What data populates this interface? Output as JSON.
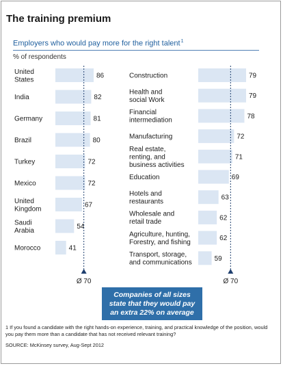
{
  "title": "The training premium",
  "subtitle": "Employers who would pay more for the right talent",
  "subtitle_footnote_marker": "1",
  "unit_label": "% of respondents",
  "callout": "Companies of all sizes\nstate that they would pay\nan extra 22% on average",
  "footnote": "1 If you found a candidate with the right hands-on experience, training, and practical knowledge of the position, would you pay them more than a candidate that has not received relevant training?",
  "source": "SOURCE: McKinsey survey, Aug-Sept 2012",
  "colors": {
    "bar": "#dbe6f3",
    "reference_line": "#1f3f6e",
    "callout_bg": "#2f6fa9",
    "subtitle": "#1f5f9e"
  },
  "chart_data": [
    {
      "type": "bar",
      "orientation": "horizontal",
      "title": "",
      "categories": [
        "United\nStates",
        "India",
        "Germany",
        "Brazil",
        "Turkey",
        "Mexico",
        "United\nKingdom",
        "Saudi\nArabia",
        "Morocco"
      ],
      "values": [
        86,
        82,
        81,
        80,
        72,
        72,
        67,
        54,
        41
      ],
      "reference_line": {
        "value": 70,
        "label": "Ø 70"
      },
      "xlim": [
        0,
        86
      ],
      "grid": false
    },
    {
      "type": "bar",
      "orientation": "horizontal",
      "title": "",
      "categories": [
        "Construction",
        "Health and\nsocial Work",
        "Financial\nintermediation",
        "Manufacturing",
        "Real estate,\nrenting, and\nbusiness activities",
        "Education",
        "Hotels and\nrestaurants",
        "Wholesale and\nretail trade",
        "Agriculture, hunting,\nForestry, and fishing",
        "Transport, storage,\nand communications"
      ],
      "values": [
        79,
        79,
        78,
        72,
        71,
        69,
        63,
        62,
        62,
        59
      ],
      "reference_line": {
        "value": 70,
        "label": "Ø 70"
      },
      "xlim": [
        0,
        79
      ],
      "grid": false
    }
  ]
}
